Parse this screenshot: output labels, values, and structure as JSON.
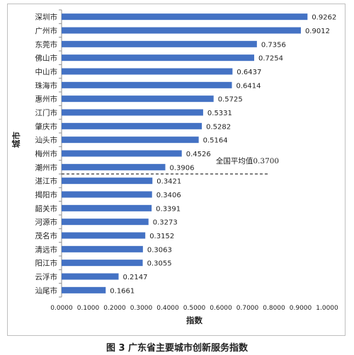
{
  "chart_data": {
    "type": "bar",
    "orientation": "horizontal",
    "categories": [
      "深圳市",
      "广州市",
      "东莞市",
      "佛山市",
      "中山市",
      "珠海市",
      "惠州市",
      "江门市",
      "肇庆市",
      "汕头市",
      "梅州市",
      "潮州市",
      "湛江市",
      "揭阳市",
      "韶关市",
      "河源市",
      "茂名市",
      "清远市",
      "阳江市",
      "云浮市",
      "汕尾市"
    ],
    "values": [
      0.9262,
      0.9012,
      0.7356,
      0.7254,
      0.6437,
      0.6414,
      0.5725,
      0.5331,
      0.5282,
      0.5164,
      0.4526,
      0.3906,
      0.3421,
      0.3406,
      0.3391,
      0.3273,
      0.3152,
      0.3063,
      0.3055,
      0.2147,
      0.1661
    ],
    "value_labels": [
      "0.9262",
      "0.9012",
      "0.7356",
      "0.7254",
      "0.6437",
      "0.6414",
      "0.5725",
      "0.5331",
      "0.5282",
      "0.5164",
      "0.4526",
      "0.3906",
      "0.3421",
      "0.3406",
      "0.3391",
      "0.3273",
      "0.3152",
      "0.3063",
      "0.3055",
      "0.2147",
      "0.1661"
    ],
    "xlabel": "指数",
    "ylabel": "城市",
    "xlim": [
      0,
      1
    ],
    "xticks": [
      "0.0000",
      "0.1000",
      "0.2000",
      "0.3000",
      "0.4000",
      "0.5000",
      "0.6000",
      "0.7000",
      "0.8000",
      "0.9000",
      "1.0000"
    ],
    "bar_color": "#4472c4",
    "grid": false,
    "reference_line": {
      "label": "全国平均值0.3700",
      "after_category": "潮州市",
      "style": "dashed"
    }
  },
  "caption": "图 3 广东省主要城市创新服务指数"
}
